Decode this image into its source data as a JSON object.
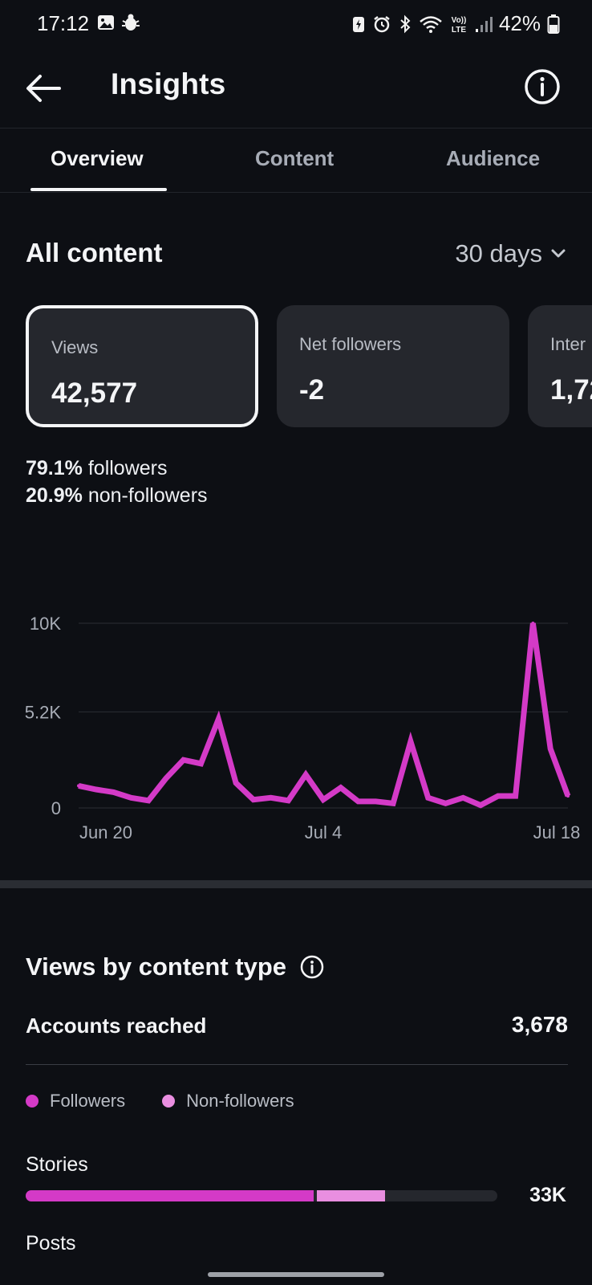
{
  "status_bar": {
    "time": "17:12",
    "battery_percent": "42%"
  },
  "header": {
    "title": "Insights",
    "back_icon": "arrow-left-icon",
    "info_icon": "info-circle-icon"
  },
  "tabs": [
    {
      "label": "Overview",
      "active": true
    },
    {
      "label": "Content",
      "active": false
    },
    {
      "label": "Audience",
      "active": false
    }
  ],
  "overview": {
    "section_title": "All content",
    "range_label": "30 days",
    "cards": [
      {
        "label": "Views",
        "value": "42,577",
        "selected": true
      },
      {
        "label": "Net followers",
        "value": "-2",
        "selected": false
      },
      {
        "label": "Inter",
        "value": "1,72",
        "selected": false
      }
    ],
    "followers_pct": "79.1%",
    "followers_label": "followers",
    "non_followers_pct": "20.9%",
    "non_followers_label": "non-followers"
  },
  "chart_data": {
    "type": "line",
    "title": "",
    "xlabel": "",
    "ylabel": "",
    "ylim": [
      0,
      10000
    ],
    "y_ticks": [
      "10K",
      "5.2K",
      "0"
    ],
    "x_ticks": [
      "Jun 20",
      "Jul 4",
      "Jul 18"
    ],
    "color": "#d43ac7",
    "series": [
      {
        "values": [
          1200,
          1000,
          850,
          550,
          400,
          1600,
          2600,
          2400,
          4800,
          1350,
          450,
          550,
          400,
          1800,
          450,
          1100,
          350,
          350,
          250,
          3600,
          550,
          250,
          550,
          150,
          650,
          650,
          10000,
          3200,
          650
        ]
      }
    ]
  },
  "views_by_type": {
    "title": "Views by content type",
    "accounts_reached_label": "Accounts reached",
    "accounts_reached_value": "3,678",
    "legend_followers": "Followers",
    "legend_non_followers": "Non-followers",
    "color_followers": "#d43ac7",
    "color_non_followers": "#e98ee0",
    "stories_label": "Stories",
    "stories_value": "33K",
    "stories_followers_fraction": 0.61,
    "stories_non_followers_fraction": 0.145,
    "posts_label": "Posts"
  }
}
